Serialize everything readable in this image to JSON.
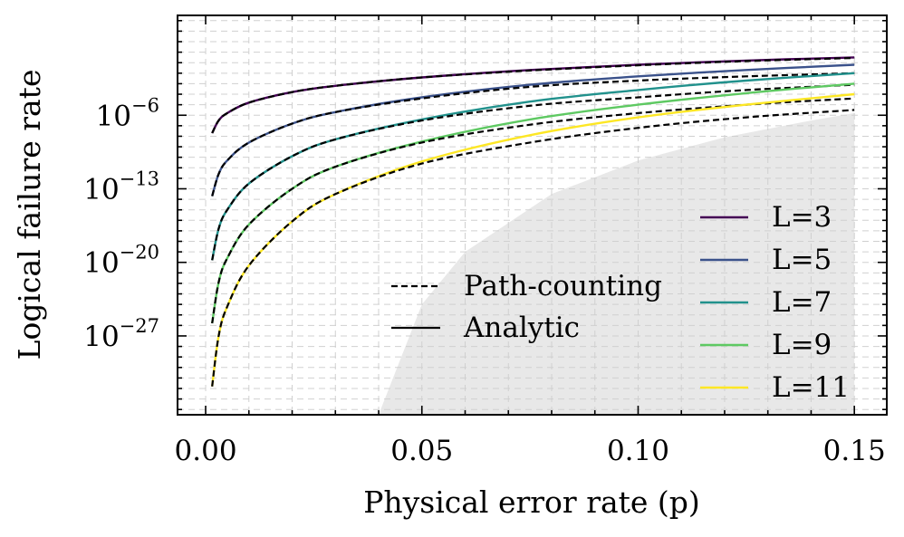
{
  "chart_data": {
    "type": "line",
    "xlabel": "Physical error rate (p)",
    "ylabel": "Logical failure rate",
    "xlim": [
      -0.0065,
      0.1575
    ],
    "ylim_log10": [
      -34.5,
      3.5
    ],
    "x_ticks": [
      {
        "value": 0.0,
        "label": "0.00"
      },
      {
        "value": 0.05,
        "label": "0.05"
      },
      {
        "value": 0.1,
        "label": "0.10"
      },
      {
        "value": 0.15,
        "label": "0.15"
      }
    ],
    "x_minor_step": 0.01,
    "y_ticks": [
      {
        "exp": -6,
        "base": "10",
        "sup": "−6"
      },
      {
        "exp": -13,
        "base": "10",
        "sup": "−13"
      },
      {
        "exp": -20,
        "base": "10",
        "sup": "−20"
      },
      {
        "exp": -27,
        "base": "10",
        "sup": "−27"
      }
    ],
    "grid": true,
    "shaded_region": {
      "description_free": true,
      "points_log10": [
        [
          0.04,
          -34.5
        ],
        [
          0.05,
          -24.0
        ],
        [
          0.06,
          -19.0
        ],
        [
          0.08,
          -13.5
        ],
        [
          0.1,
          -10.3
        ],
        [
          0.12,
          -8.1
        ],
        [
          0.14,
          -6.5
        ],
        [
          0.15,
          -5.8
        ],
        [
          0.15,
          -34.5
        ]
      ],
      "color": "#e8e8e8"
    },
    "series": [
      {
        "name": "L=3",
        "color": "#440154",
        "analytic_log10": [
          [
            0.0015,
            -7.7
          ],
          [
            0.003,
            -6.5
          ],
          [
            0.005,
            -5.8
          ],
          [
            0.01,
            -4.8
          ],
          [
            0.02,
            -3.8
          ],
          [
            0.03,
            -3.2
          ],
          [
            0.05,
            -2.4
          ],
          [
            0.075,
            -1.7
          ],
          [
            0.1,
            -1.2
          ],
          [
            0.125,
            -0.8
          ],
          [
            0.15,
            -0.5
          ]
        ],
        "path_counting_log10": [
          [
            0.0015,
            -7.7
          ],
          [
            0.003,
            -6.5
          ],
          [
            0.005,
            -5.8
          ],
          [
            0.01,
            -4.8
          ],
          [
            0.02,
            -3.8
          ],
          [
            0.03,
            -3.2
          ],
          [
            0.05,
            -2.4
          ],
          [
            0.075,
            -1.75
          ],
          [
            0.1,
            -1.25
          ],
          [
            0.125,
            -0.85
          ],
          [
            0.15,
            -0.55
          ]
        ]
      },
      {
        "name": "L=5",
        "color": "#3b528b",
        "analytic_log10": [
          [
            0.0015,
            -13.7
          ],
          [
            0.003,
            -11.6
          ],
          [
            0.005,
            -10.3
          ],
          [
            0.01,
            -8.6
          ],
          [
            0.02,
            -6.8
          ],
          [
            0.03,
            -5.7
          ],
          [
            0.05,
            -4.3
          ],
          [
            0.075,
            -3.1
          ],
          [
            0.1,
            -2.3
          ],
          [
            0.125,
            -1.7
          ],
          [
            0.15,
            -1.2
          ]
        ],
        "path_counting_log10": [
          [
            0.0015,
            -13.7
          ],
          [
            0.003,
            -11.6
          ],
          [
            0.005,
            -10.3
          ],
          [
            0.01,
            -8.6
          ],
          [
            0.02,
            -6.8
          ],
          [
            0.03,
            -5.7
          ],
          [
            0.05,
            -4.4
          ],
          [
            0.075,
            -3.3
          ],
          [
            0.1,
            -2.7
          ],
          [
            0.125,
            -2.3
          ],
          [
            0.15,
            -2.0
          ]
        ]
      },
      {
        "name": "L=7",
        "color": "#21918c",
        "analytic_log10": [
          [
            0.0015,
            -19.8
          ],
          [
            0.003,
            -16.8
          ],
          [
            0.005,
            -15.0
          ],
          [
            0.01,
            -12.5
          ],
          [
            0.02,
            -9.9
          ],
          [
            0.03,
            -8.3
          ],
          [
            0.05,
            -6.4
          ],
          [
            0.075,
            -4.7
          ],
          [
            0.1,
            -3.6
          ],
          [
            0.125,
            -2.7
          ],
          [
            0.15,
            -2.0
          ]
        ],
        "path_counting_log10": [
          [
            0.0015,
            -19.8
          ],
          [
            0.003,
            -16.8
          ],
          [
            0.005,
            -15.0
          ],
          [
            0.01,
            -12.5
          ],
          [
            0.02,
            -9.9
          ],
          [
            0.03,
            -8.3
          ],
          [
            0.05,
            -6.5
          ],
          [
            0.075,
            -5.1
          ],
          [
            0.1,
            -4.3
          ],
          [
            0.125,
            -3.6
          ],
          [
            0.15,
            -3.1
          ]
        ]
      },
      {
        "name": "L=9",
        "color": "#5ec962",
        "analytic_log10": [
          [
            0.0015,
            -25.8
          ],
          [
            0.003,
            -21.9
          ],
          [
            0.005,
            -19.6
          ],
          [
            0.01,
            -16.4
          ],
          [
            0.02,
            -13.0
          ],
          [
            0.03,
            -10.9
          ],
          [
            0.05,
            -8.5
          ],
          [
            0.075,
            -6.4
          ],
          [
            0.1,
            -5.0
          ],
          [
            0.125,
            -3.9
          ],
          [
            0.15,
            -3.0
          ]
        ],
        "path_counting_log10": [
          [
            0.0015,
            -25.8
          ],
          [
            0.003,
            -21.9
          ],
          [
            0.005,
            -19.6
          ],
          [
            0.01,
            -16.4
          ],
          [
            0.02,
            -13.0
          ],
          [
            0.03,
            -10.9
          ],
          [
            0.05,
            -8.6
          ],
          [
            0.075,
            -6.9
          ],
          [
            0.1,
            -5.8
          ],
          [
            0.125,
            -5.0
          ],
          [
            0.15,
            -4.4
          ]
        ]
      },
      {
        "name": "L=11",
        "color": "#fde725",
        "analytic_log10": [
          [
            0.0015,
            -31.8
          ],
          [
            0.003,
            -27.0
          ],
          [
            0.005,
            -24.2
          ],
          [
            0.01,
            -20.3
          ],
          [
            0.02,
            -16.1
          ],
          [
            0.03,
            -13.5
          ],
          [
            0.05,
            -10.4
          ],
          [
            0.075,
            -7.9
          ],
          [
            0.1,
            -6.2
          ],
          [
            0.125,
            -5.0
          ],
          [
            0.15,
            -4.0
          ]
        ],
        "path_counting_log10": [
          [
            0.0015,
            -31.8
          ],
          [
            0.003,
            -27.0
          ],
          [
            0.005,
            -24.2
          ],
          [
            0.01,
            -20.3
          ],
          [
            0.02,
            -16.1
          ],
          [
            0.03,
            -13.5
          ],
          [
            0.05,
            -10.6
          ],
          [
            0.075,
            -8.6
          ],
          [
            0.1,
            -7.2
          ],
          [
            0.125,
            -6.2
          ],
          [
            0.15,
            -5.5
          ]
        ]
      }
    ],
    "legend_style": {
      "location": "lower-center",
      "entries": [
        {
          "label": "Path-counting",
          "style": "dashed",
          "color": "#000000"
        },
        {
          "label": "Analytic",
          "style": "solid",
          "color": "#000000"
        }
      ]
    },
    "legend_size": {
      "location": "lower-right",
      "entries": [
        "L=3",
        "L=5",
        "L=7",
        "L=9",
        "L=11"
      ]
    }
  }
}
